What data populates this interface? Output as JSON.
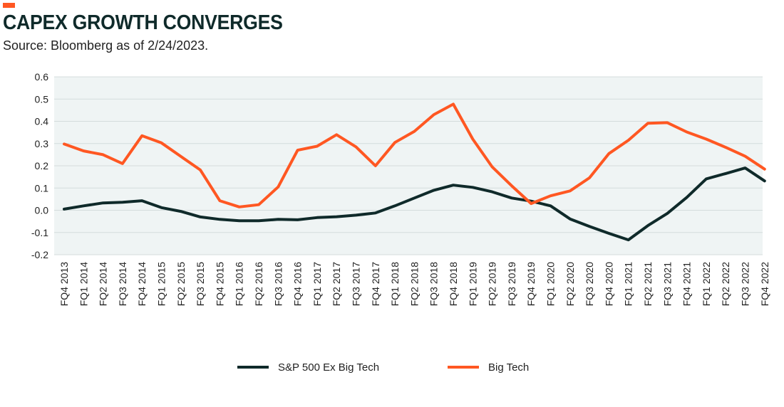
{
  "header": {
    "title": "CAPEX GROWTH CONVERGES",
    "subtitle": "Source: Bloomberg as of 2/24/2023."
  },
  "colors": {
    "accent": "#ff5722",
    "series_dark": "#0f2a2a",
    "series_orange": "#ff5722",
    "plot_background": "#eff4f4",
    "gridline": "#d4dcdc"
  },
  "chart_data": {
    "type": "line",
    "title": "CAPEX GROWTH CONVERGES",
    "subtitle": "Source: Bloomberg as of 2/24/2023.",
    "xlabel": "",
    "ylabel": "",
    "ylim": [
      -0.2,
      0.6
    ],
    "yticks": [
      -0.2,
      -0.1,
      0.0,
      0.1,
      0.2,
      0.3,
      0.4,
      0.5,
      0.6
    ],
    "ytick_labels": [
      "-0.2",
      "-0.1",
      "0.0",
      "0.1",
      "0.2",
      "0.3",
      "0.4",
      "0.5",
      "0.6"
    ],
    "grid": true,
    "legend_position": "bottom",
    "categories": [
      "FQ4 2013",
      "FQ1 2014",
      "FQ2 2014",
      "FQ3 2014",
      "FQ4 2014",
      "FQ1 2015",
      "FQ2 2015",
      "FQ3 2015",
      "FQ4 2015",
      "FQ1 2016",
      "FQ2 2016",
      "FQ3 2016",
      "FQ4 2016",
      "FQ1 2017",
      "FQ2 2017",
      "FQ3 2017",
      "FQ4 2017",
      "FQ1 2018",
      "FQ2 2018",
      "FQ3 2018",
      "FQ4 2018",
      "FQ1 2019",
      "FQ2 2019",
      "FQ3 2019",
      "FQ4 2019",
      "FQ1 2020",
      "FQ2 2020",
      "FQ3 2020",
      "FQ4 2020",
      "FQ1 2021",
      "FQ2 2021",
      "FQ3 2021",
      "FQ4 2021",
      "FQ1 2022",
      "FQ2 2022",
      "FQ3 2022",
      "FQ4 2022"
    ],
    "series": [
      {
        "name": "S&P 500 Ex Big Tech",
        "color": "#0f2a2a",
        "values": [
          0.005,
          0.02,
          0.033,
          0.036,
          0.043,
          0.012,
          -0.005,
          -0.03,
          -0.041,
          -0.047,
          -0.047,
          -0.041,
          -0.043,
          -0.033,
          -0.029,
          -0.022,
          -0.012,
          0.02,
          0.055,
          0.09,
          0.113,
          0.103,
          0.083,
          0.055,
          0.041,
          0.02,
          -0.039,
          -0.073,
          -0.104,
          -0.133,
          -0.069,
          -0.014,
          0.058,
          0.141,
          0.165,
          0.19,
          0.132
        ]
      },
      {
        "name": "Big Tech",
        "color": "#ff5722",
        "values": [
          0.298,
          0.267,
          0.25,
          0.21,
          0.335,
          0.303,
          0.242,
          0.181,
          0.043,
          0.015,
          0.025,
          0.105,
          0.27,
          0.288,
          0.34,
          0.285,
          0.2,
          0.305,
          0.355,
          0.43,
          0.477,
          0.32,
          0.195,
          0.11,
          0.03,
          0.065,
          0.087,
          0.146,
          0.255,
          0.315,
          0.391,
          0.394,
          0.352,
          0.32,
          0.283,
          0.243,
          0.185
        ]
      }
    ]
  }
}
